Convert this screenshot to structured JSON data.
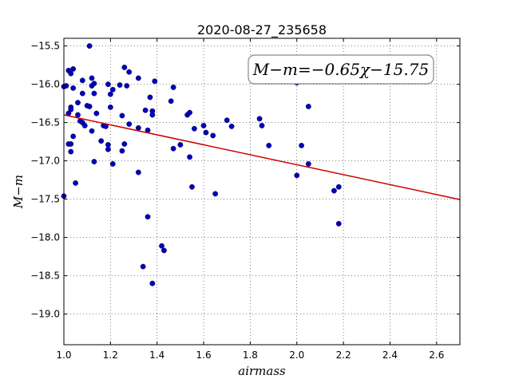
{
  "chart_data": {
    "type": "scatter",
    "title": "2020-08-27_235658",
    "xlabel": "airmass",
    "ylabel": "M−m",
    "xlim": [
      1.0,
      2.7
    ],
    "ylim": [
      -19.4,
      -15.4
    ],
    "y_inverted": true,
    "grid": true,
    "x_ticks": [
      1.0,
      1.2,
      1.4,
      1.6,
      1.8,
      2.0,
      2.2,
      2.4,
      2.6
    ],
    "x_tick_labels": [
      "1.0",
      "1.2",
      "1.4",
      "1.6",
      "1.8",
      "2.0",
      "2.2",
      "2.4",
      "2.6"
    ],
    "y_ticks": [
      -15.5,
      -16.0,
      -16.5,
      -17.0,
      -17.5,
      -18.0,
      -18.5,
      -19.0
    ],
    "y_tick_labels": [
      "−15.5",
      "−16.0",
      "−16.5",
      "−17.0",
      "−17.5",
      "−18.0",
      "−18.5",
      "−19.0"
    ],
    "annotation": "M−m=−0.65χ−15.75",
    "annotation_position": "top-right",
    "fit": {
      "slope": -0.65,
      "intercept": -15.75,
      "color": "#cc0000"
    },
    "point_color": "#0000bb",
    "points": [
      [
        1.0,
        -17.46
      ],
      [
        1.0,
        -16.03
      ],
      [
        1.01,
        -16.02
      ],
      [
        1.02,
        -16.38
      ],
      [
        1.02,
        -16.78
      ],
      [
        1.02,
        -15.82
      ],
      [
        1.03,
        -15.86
      ],
      [
        1.03,
        -16.3
      ],
      [
        1.03,
        -16.33
      ],
      [
        1.03,
        -16.78
      ],
      [
        1.03,
        -16.88
      ],
      [
        1.04,
        -16.05
      ],
      [
        1.04,
        -15.8
      ],
      [
        1.04,
        -16.68
      ],
      [
        1.05,
        -17.29
      ],
      [
        1.06,
        -16.24
      ],
      [
        1.06,
        -16.4
      ],
      [
        1.07,
        -16.48
      ],
      [
        1.08,
        -16.5
      ],
      [
        1.08,
        -15.95
      ],
      [
        1.08,
        -16.12
      ],
      [
        1.09,
        -16.54
      ],
      [
        1.1,
        -16.28
      ],
      [
        1.11,
        -15.5
      ],
      [
        1.11,
        -16.29
      ],
      [
        1.12,
        -15.92
      ],
      [
        1.12,
        -16.02
      ],
      [
        1.12,
        -16.61
      ],
      [
        1.13,
        -15.99
      ],
      [
        1.13,
        -16.12
      ],
      [
        1.13,
        -17.01
      ],
      [
        1.14,
        -16.38
      ],
      [
        1.16,
        -16.74
      ],
      [
        1.17,
        -16.54
      ],
      [
        1.18,
        -16.55
      ],
      [
        1.19,
        -16.0
      ],
      [
        1.19,
        -16.79
      ],
      [
        1.19,
        -16.85
      ],
      [
        1.2,
        -16.13
      ],
      [
        1.2,
        -16.3
      ],
      [
        1.21,
        -16.07
      ],
      [
        1.21,
        -17.04
      ],
      [
        1.24,
        -16.01
      ],
      [
        1.25,
        -16.41
      ],
      [
        1.25,
        -16.87
      ],
      [
        1.26,
        -15.78
      ],
      [
        1.26,
        -16.78
      ],
      [
        1.27,
        -16.02
      ],
      [
        1.28,
        -15.84
      ],
      [
        1.28,
        -16.52
      ],
      [
        1.32,
        -15.92
      ],
      [
        1.32,
        -16.57
      ],
      [
        1.32,
        -17.15
      ],
      [
        1.34,
        -18.38
      ],
      [
        1.35,
        -16.34
      ],
      [
        1.36,
        -16.6
      ],
      [
        1.36,
        -17.73
      ],
      [
        1.37,
        -16.17
      ],
      [
        1.38,
        -16.4
      ],
      [
        1.38,
        -18.6
      ],
      [
        1.38,
        -16.35
      ],
      [
        1.39,
        -15.96
      ],
      [
        1.42,
        -18.11
      ],
      [
        1.43,
        -18.17
      ],
      [
        1.46,
        -16.22
      ],
      [
        1.47,
        -16.04
      ],
      [
        1.47,
        -16.84
      ],
      [
        1.5,
        -16.79
      ],
      [
        1.53,
        -16.4
      ],
      [
        1.54,
        -16.37
      ],
      [
        1.54,
        -16.95
      ],
      [
        1.55,
        -17.34
      ],
      [
        1.56,
        -16.58
      ],
      [
        1.6,
        -16.54
      ],
      [
        1.61,
        -16.63
      ],
      [
        1.64,
        -16.67
      ],
      [
        1.65,
        -17.43
      ],
      [
        1.7,
        -16.47
      ],
      [
        1.72,
        -16.55
      ],
      [
        1.84,
        -16.45
      ],
      [
        1.85,
        -16.54
      ],
      [
        1.88,
        -16.8
      ],
      [
        2.0,
        -17.19
      ],
      [
        2.0,
        -15.98
      ],
      [
        2.02,
        -16.8
      ],
      [
        2.05,
        -16.29
      ],
      [
        2.05,
        -17.04
      ],
      [
        2.16,
        -17.39
      ],
      [
        2.18,
        -17.34
      ],
      [
        2.18,
        -17.82
      ]
    ]
  }
}
